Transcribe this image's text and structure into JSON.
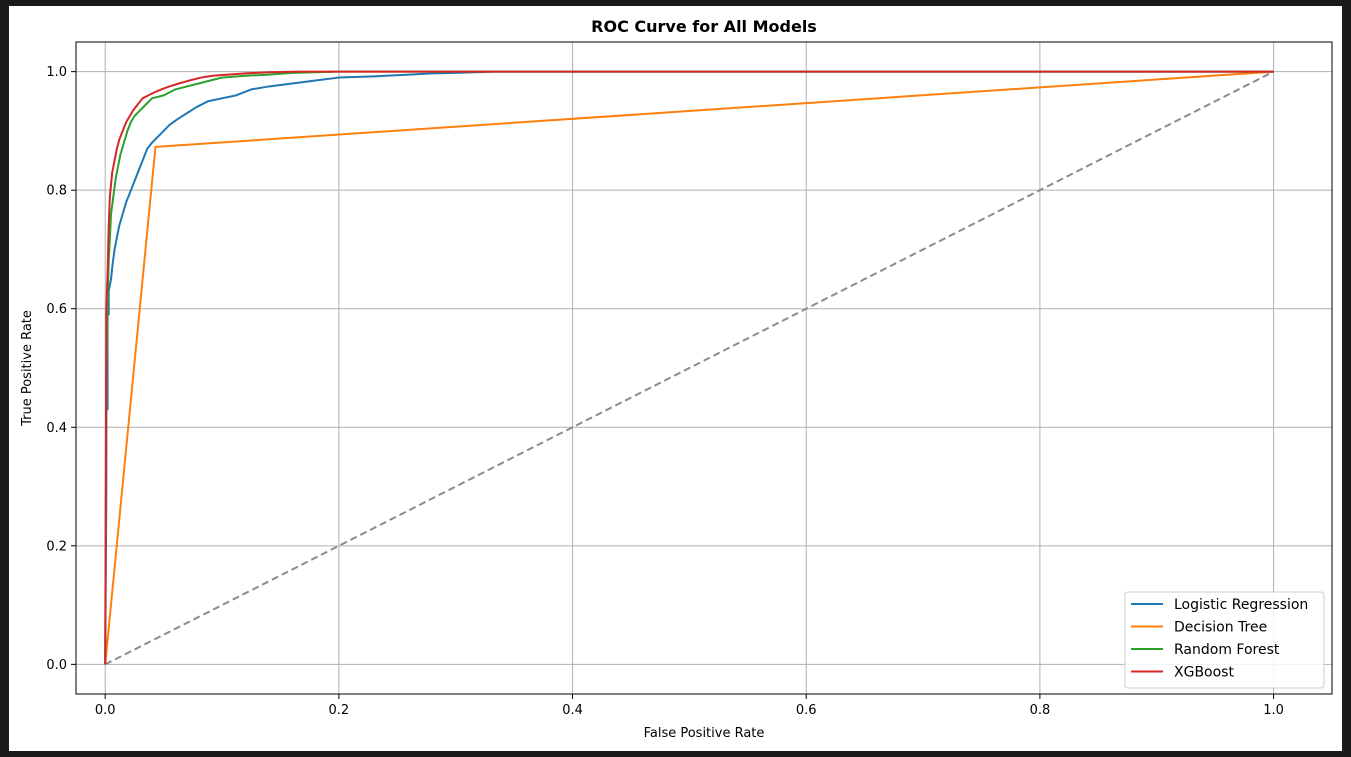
{
  "chart_data": {
    "type": "line",
    "title": "ROC Curve for All Models",
    "xlabel": "False Positive Rate",
    "ylabel": "True Positive Rate",
    "xlim": [
      -0.025,
      1.05
    ],
    "ylim": [
      -0.05,
      1.05
    ],
    "grid": true,
    "legend_placement": "lower-right",
    "x_ticks": [
      {
        "value": 0.0,
        "label": "0.0"
      },
      {
        "value": 0.2,
        "label": "0.2"
      },
      {
        "value": 0.4,
        "label": "0.4"
      },
      {
        "value": 0.6,
        "label": "0.6"
      },
      {
        "value": 0.8,
        "label": "0.8"
      },
      {
        "value": 1.0,
        "label": "1.0"
      }
    ],
    "y_ticks": [
      {
        "value": 0.0,
        "label": "0.0"
      },
      {
        "value": 0.2,
        "label": "0.2"
      },
      {
        "value": 0.4,
        "label": "0.4"
      },
      {
        "value": 0.6,
        "label": "0.6"
      },
      {
        "value": 0.8,
        "label": "0.8"
      },
      {
        "value": 1.0,
        "label": "1.0"
      }
    ],
    "reference_line": {
      "color": "#8c8c8c",
      "style": "dashed",
      "x": [
        0,
        1
      ],
      "y": [
        0,
        1
      ]
    },
    "series": [
      {
        "name": "Logistic Regression",
        "color": "#1f77b4",
        "x": [
          0,
          0.001,
          0.001,
          0.002,
          0.002,
          0.003,
          0.003,
          0.005,
          0.006,
          0.008,
          0.01,
          0.012,
          0.015,
          0.018,
          0.022,
          0.026,
          0.03,
          0.034,
          0.036,
          0.04,
          0.045,
          0.05,
          0.055,
          0.062,
          0.07,
          0.078,
          0.088,
          0.1,
          0.112,
          0.125,
          0.14,
          0.16,
          0.18,
          0.2,
          0.23,
          0.26,
          0.28,
          0.3,
          0.333,
          1.0
        ],
        "y": [
          0,
          0.3,
          0.43,
          0.43,
          0.59,
          0.59,
          0.63,
          0.65,
          0.67,
          0.7,
          0.72,
          0.74,
          0.76,
          0.78,
          0.8,
          0.82,
          0.84,
          0.86,
          0.87,
          0.88,
          0.89,
          0.9,
          0.91,
          0.92,
          0.93,
          0.94,
          0.95,
          0.955,
          0.96,
          0.97,
          0.975,
          0.98,
          0.985,
          0.99,
          0.992,
          0.995,
          0.997,
          0.998,
          1.0,
          1.0
        ]
      },
      {
        "name": "Decision Tree",
        "color": "#ff7f0e",
        "x": [
          0,
          0.043,
          1.0
        ],
        "y": [
          0,
          0.873,
          1.0
        ]
      },
      {
        "name": "Random Forest",
        "color": "#2ca02c",
        "x": [
          0,
          0.001,
          0.002,
          0.003,
          0.004,
          0.005,
          0.007,
          0.009,
          0.011,
          0.013,
          0.016,
          0.019,
          0.022,
          0.025,
          0.03,
          0.035,
          0.04,
          0.05,
          0.06,
          0.07,
          0.08,
          0.09,
          0.1,
          0.12,
          0.14,
          0.16,
          0.2,
          1.0
        ],
        "y": [
          0,
          0.5,
          0.6,
          0.68,
          0.72,
          0.76,
          0.79,
          0.82,
          0.84,
          0.86,
          0.88,
          0.9,
          0.915,
          0.925,
          0.935,
          0.945,
          0.955,
          0.96,
          0.97,
          0.975,
          0.98,
          0.985,
          0.99,
          0.993,
          0.995,
          0.998,
          1.0,
          1.0
        ]
      },
      {
        "name": "XGBoost",
        "color": "#d62728",
        "x": [
          0,
          0.001,
          0.002,
          0.003,
          0.004,
          0.005,
          0.006,
          0.008,
          0.01,
          0.012,
          0.015,
          0.018,
          0.021,
          0.024,
          0.028,
          0.032,
          0.037,
          0.042,
          0.048,
          0.055,
          0.063,
          0.072,
          0.082,
          0.092,
          0.105,
          0.12,
          0.14,
          0.165,
          1.0
        ],
        "y": [
          0,
          0.6,
          0.66,
          0.74,
          0.79,
          0.81,
          0.83,
          0.85,
          0.87,
          0.885,
          0.9,
          0.915,
          0.925,
          0.935,
          0.945,
          0.955,
          0.96,
          0.965,
          0.97,
          0.975,
          0.98,
          0.985,
          0.99,
          0.993,
          0.995,
          0.997,
          0.999,
          1.0,
          1.0
        ]
      }
    ]
  }
}
